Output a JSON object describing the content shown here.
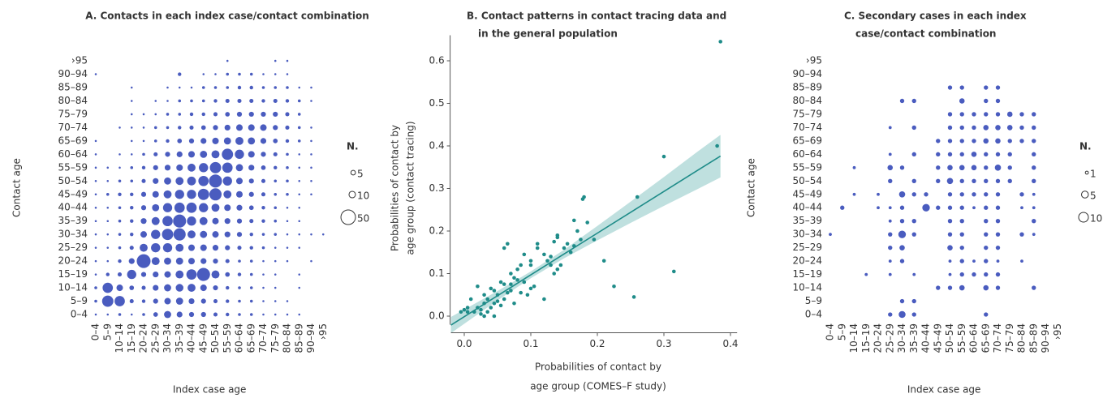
{
  "chart_data": [
    {
      "type": "bubblegrid",
      "title": "A. Contacts in each index case/contact combination",
      "x_label": "Index case age",
      "y_label": "Contact age",
      "color": "#4a5cbf",
      "categories": [
        "0–4",
        "5–9",
        "10–14",
        "15–19",
        "20–24",
        "25–29",
        "30–34",
        "35–39",
        "40–44",
        "45–49",
        "50–54",
        "55–59",
        "60–64",
        "65–69",
        "70–74",
        "75–79",
        "80–84",
        "85–89",
        "90–94",
        "›95"
      ],
      "legend": {
        "title": "N.",
        "sizes": [
          5,
          10,
          50
        ]
      },
      "values": [
        [
          1,
          1,
          2,
          1,
          2,
          5,
          12,
          8,
          6,
          6,
          4,
          3,
          2,
          2,
          1,
          1,
          1,
          1,
          null,
          null
        ],
        [
          2,
          30,
          25,
          4,
          3,
          6,
          10,
          12,
          8,
          6,
          4,
          3,
          2,
          2,
          1,
          1,
          1,
          null,
          null,
          null
        ],
        [
          2,
          25,
          10,
          5,
          4,
          8,
          12,
          14,
          15,
          10,
          6,
          3,
          2,
          2,
          1,
          1,
          null,
          1,
          null,
          null
        ],
        [
          1,
          3,
          4,
          20,
          6,
          8,
          10,
          15,
          25,
          40,
          15,
          5,
          3,
          2,
          1,
          1,
          null,
          1,
          null,
          null
        ],
        [
          1,
          1,
          3,
          8,
          45,
          15,
          12,
          12,
          10,
          8,
          6,
          4,
          2,
          2,
          1,
          1,
          1,
          null,
          1,
          null
        ],
        [
          1,
          1,
          2,
          4,
          15,
          20,
          20,
          15,
          10,
          10,
          8,
          6,
          4,
          3,
          2,
          1,
          1,
          1,
          null,
          null
        ],
        [
          1,
          1,
          2,
          3,
          10,
          20,
          30,
          35,
          15,
          12,
          10,
          8,
          6,
          3,
          2,
          2,
          1,
          1,
          1,
          1
        ],
        [
          1,
          1,
          2,
          3,
          8,
          15,
          25,
          40,
          20,
          15,
          10,
          8,
          6,
          4,
          3,
          2,
          1,
          1,
          null,
          null
        ],
        [
          1,
          1,
          2,
          3,
          6,
          12,
          20,
          25,
          25,
          20,
          15,
          10,
          8,
          5,
          3,
          2,
          1,
          1,
          null,
          null
        ],
        [
          1,
          2,
          3,
          3,
          6,
          10,
          15,
          20,
          20,
          30,
          35,
          15,
          10,
          6,
          4,
          2,
          2,
          1,
          1,
          null
        ],
        [
          1,
          1,
          2,
          2,
          4,
          8,
          12,
          15,
          18,
          25,
          40,
          20,
          10,
          6,
          4,
          2,
          2,
          1,
          1,
          null
        ],
        [
          1,
          1,
          1,
          2,
          3,
          6,
          8,
          10,
          15,
          20,
          30,
          25,
          12,
          8,
          5,
          3,
          2,
          1,
          1,
          null
        ],
        [
          1,
          null,
          1,
          1,
          2,
          4,
          6,
          8,
          10,
          12,
          15,
          30,
          20,
          10,
          6,
          4,
          2,
          1,
          1,
          null
        ],
        [
          1,
          null,
          null,
          1,
          1,
          2,
          3,
          5,
          6,
          8,
          10,
          12,
          15,
          12,
          8,
          5,
          3,
          2,
          1,
          null
        ],
        [
          null,
          null,
          1,
          1,
          1,
          2,
          2,
          3,
          4,
          5,
          6,
          8,
          10,
          10,
          10,
          6,
          4,
          2,
          1,
          null
        ],
        [
          null,
          null,
          null,
          1,
          1,
          1,
          2,
          2,
          3,
          3,
          4,
          5,
          6,
          6,
          6,
          6,
          4,
          2,
          null,
          null
        ],
        [
          null,
          null,
          null,
          1,
          null,
          1,
          1,
          2,
          2,
          2,
          3,
          4,
          4,
          4,
          3,
          4,
          3,
          2,
          1,
          null
        ],
        [
          null,
          null,
          null,
          1,
          null,
          null,
          1,
          1,
          1,
          2,
          2,
          2,
          3,
          3,
          2,
          2,
          2,
          1,
          1,
          null
        ],
        [
          1,
          null,
          null,
          null,
          null,
          null,
          null,
          3,
          null,
          1,
          1,
          2,
          2,
          2,
          1,
          1,
          1,
          null,
          null,
          null
        ],
        [
          null,
          null,
          null,
          null,
          null,
          null,
          null,
          null,
          null,
          null,
          null,
          1,
          null,
          null,
          null,
          1,
          1,
          null,
          null,
          null
        ]
      ]
    },
    {
      "type": "scatter",
      "title": [
        "B. Contact patterns in contact tracing data and",
        "in the general population"
      ],
      "x_label": [
        "Probabilities of contact by",
        "age group (COMES–F study)"
      ],
      "y_label": [
        "Probabilities of contact by",
        "age group (contact tracing)"
      ],
      "color": "#1f8c89",
      "band_color": "#bfe0df",
      "xlim": [
        -0.02,
        0.41
      ],
      "ylim": [
        -0.02,
        0.66
      ],
      "xticks": [
        {
          "value": 0,
          "label": "0.0"
        },
        0.1,
        0.2,
        0.3,
        0.4
      ],
      "yticks": [
        {
          "value": 0,
          "label": "0.0"
        },
        0.1,
        0.2,
        0.3,
        0.4,
        0.5,
        0.6
      ],
      "x": [
        0.385,
        0.38,
        0.3,
        0.315,
        0.26,
        0.255,
        0.225,
        0.21,
        0.195,
        0.18,
        0.178,
        0.185,
        0.17,
        0.175,
        0.165,
        0.16,
        0.165,
        0.155,
        0.15,
        0.145,
        0.14,
        0.14,
        0.135,
        0.13,
        0.13,
        0.125,
        0.12,
        0.135,
        0.14,
        0.12,
        0.11,
        0.11,
        0.1,
        0.1,
        0.105,
        0.1,
        0.095,
        0.09,
        0.09,
        0.085,
        0.08,
        0.08,
        0.075,
        0.07,
        0.07,
        0.065,
        0.065,
        0.06,
        0.06,
        0.06,
        0.055,
        0.055,
        0.05,
        0.05,
        0.045,
        0.045,
        0.04,
        0.04,
        0.035,
        0.035,
        0.03,
        0.03,
        0.025,
        0.025,
        0.02,
        0.02,
        0.015,
        0.01,
        0.005,
        0.005,
        0.0,
        -0.005,
        0.075,
        0.085,
        0.07,
        0.045,
        0.03
      ],
      "values": [
        0.645,
        0.4,
        0.375,
        0.105,
        0.28,
        0.045,
        0.07,
        0.13,
        0.18,
        0.28,
        0.275,
        0.22,
        0.2,
        0.18,
        0.165,
        0.15,
        0.225,
        0.17,
        0.16,
        0.12,
        0.185,
        0.19,
        0.175,
        0.14,
        0.12,
        0.13,
        0.145,
        0.1,
        0.11,
        0.04,
        0.17,
        0.16,
        0.13,
        0.12,
        0.07,
        0.065,
        0.05,
        0.08,
        0.145,
        0.12,
        0.11,
        0.085,
        0.09,
        0.06,
        0.1,
        0.055,
        0.17,
        0.16,
        0.075,
        0.04,
        0.08,
        0.025,
        0.05,
        0.035,
        0.06,
        0.03,
        0.065,
        0.02,
        0.04,
        0.01,
        0.05,
        0.03,
        0.015,
        0.005,
        0.07,
        0.02,
        0.01,
        0.04,
        0.02,
        0.01,
        0.015,
        0.01,
        0.03,
        0.055,
        0.075,
        0.0,
        0.0
      ],
      "fit": {
        "x": [
          -0.02,
          0.05,
          0.1,
          0.15,
          0.2,
          0.25,
          0.3,
          0.35,
          0.385
        ],
        "y": [
          -0.021,
          0.048,
          0.097,
          0.146,
          0.195,
          0.244,
          0.293,
          0.342,
          0.376
        ],
        "lower": [
          -0.04,
          0.037,
          0.089,
          0.136,
          0.178,
          0.219,
          0.259,
          0.298,
          0.326
        ],
        "upper": [
          -0.002,
          0.059,
          0.105,
          0.156,
          0.212,
          0.269,
          0.327,
          0.386,
          0.426
        ]
      }
    },
    {
      "type": "bubblegrid",
      "title": [
        "C. Secondary cases in each index",
        "case/contact combination"
      ],
      "x_label": "Index case age",
      "y_label": "Contact age",
      "color": "#4a5cbf",
      "categories": [
        "0–4",
        "5–9",
        "10–14",
        "15–19",
        "20–24",
        "25–29",
        "30–34",
        "35–39",
        "40–44",
        "45–49",
        "50–54",
        "55–59",
        "60–64",
        "65–69",
        "70–74",
        "75–79",
        "80–84",
        "85–89",
        "90–94",
        "›95"
      ],
      "legend": {
        "title": "N.",
        "sizes": [
          1,
          5,
          10
        ]
      },
      "values": [
        [
          null,
          null,
          null,
          null,
          null,
          2,
          5,
          2,
          null,
          null,
          null,
          null,
          null,
          2,
          null,
          null,
          null,
          null,
          null,
          null
        ],
        [
          null,
          null,
          null,
          null,
          null,
          null,
          2,
          2,
          null,
          null,
          null,
          null,
          null,
          null,
          null,
          null,
          null,
          null,
          null,
          null
        ],
        [
          null,
          null,
          null,
          null,
          null,
          null,
          null,
          null,
          null,
          2,
          2,
          3,
          null,
          3,
          2,
          null,
          null,
          2,
          null,
          null
        ],
        [
          null,
          null,
          null,
          1,
          null,
          1,
          null,
          1,
          null,
          null,
          1,
          2,
          2,
          2,
          2,
          null,
          null,
          null,
          null,
          null
        ],
        [
          null,
          null,
          null,
          null,
          null,
          1,
          2,
          null,
          null,
          null,
          1,
          2,
          1,
          2,
          1,
          null,
          1,
          null,
          null,
          null
        ],
        [
          null,
          null,
          null,
          null,
          null,
          2,
          3,
          null,
          null,
          null,
          3,
          2,
          null,
          2,
          2,
          null,
          null,
          null,
          null,
          null
        ],
        [
          1,
          null,
          null,
          null,
          null,
          2,
          6,
          2,
          null,
          null,
          2,
          2,
          null,
          2,
          2,
          null,
          2,
          1,
          null,
          null
        ],
        [
          null,
          null,
          null,
          null,
          null,
          1,
          2,
          2,
          null,
          null,
          2,
          2,
          null,
          2,
          2,
          null,
          null,
          2,
          null,
          null
        ],
        [
          null,
          2,
          null,
          null,
          1,
          1,
          2,
          null,
          6,
          2,
          2,
          2,
          1,
          2,
          2,
          null,
          1,
          1,
          null,
          null
        ],
        [
          null,
          null,
          1,
          null,
          1,
          null,
          4,
          2,
          2,
          null,
          2,
          2,
          2,
          2,
          2,
          null,
          2,
          1,
          null,
          null
        ],
        [
          null,
          null,
          null,
          null,
          null,
          2,
          null,
          2,
          null,
          2,
          4,
          2,
          2,
          2,
          2,
          2,
          null,
          2,
          null,
          null
        ],
        [
          null,
          null,
          1,
          null,
          null,
          3,
          2,
          null,
          null,
          2,
          3,
          3,
          3,
          2,
          4,
          2,
          null,
          2,
          null,
          null
        ],
        [
          null,
          null,
          null,
          null,
          null,
          1,
          null,
          2,
          null,
          2,
          2,
          2,
          3,
          2,
          2,
          2,
          null,
          2,
          null,
          null
        ],
        [
          null,
          null,
          null,
          null,
          null,
          null,
          null,
          null,
          null,
          2,
          2,
          2,
          2,
          3,
          3,
          2,
          2,
          2,
          null,
          null
        ],
        [
          null,
          null,
          null,
          null,
          null,
          1,
          null,
          2,
          null,
          null,
          2,
          2,
          2,
          3,
          3,
          3,
          2,
          2,
          null,
          null
        ],
        [
          null,
          null,
          null,
          null,
          null,
          null,
          null,
          null,
          null,
          null,
          2,
          2,
          2,
          2,
          2,
          3,
          2,
          2,
          null,
          null
        ],
        [
          null,
          null,
          null,
          null,
          null,
          null,
          2,
          2,
          null,
          null,
          null,
          3,
          null,
          2,
          2,
          null,
          null,
          null,
          null,
          null
        ],
        [
          null,
          null,
          null,
          null,
          null,
          null,
          null,
          null,
          null,
          null,
          2,
          2,
          null,
          2,
          2,
          null,
          null,
          null,
          null,
          null
        ],
        [
          null,
          null,
          null,
          null,
          null,
          null,
          null,
          null,
          null,
          null,
          null,
          null,
          null,
          null,
          null,
          null,
          null,
          null,
          null,
          null
        ],
        [
          null,
          null,
          null,
          null,
          null,
          null,
          null,
          null,
          null,
          null,
          null,
          null,
          null,
          null,
          null,
          null,
          null,
          null,
          null,
          null
        ]
      ]
    }
  ]
}
